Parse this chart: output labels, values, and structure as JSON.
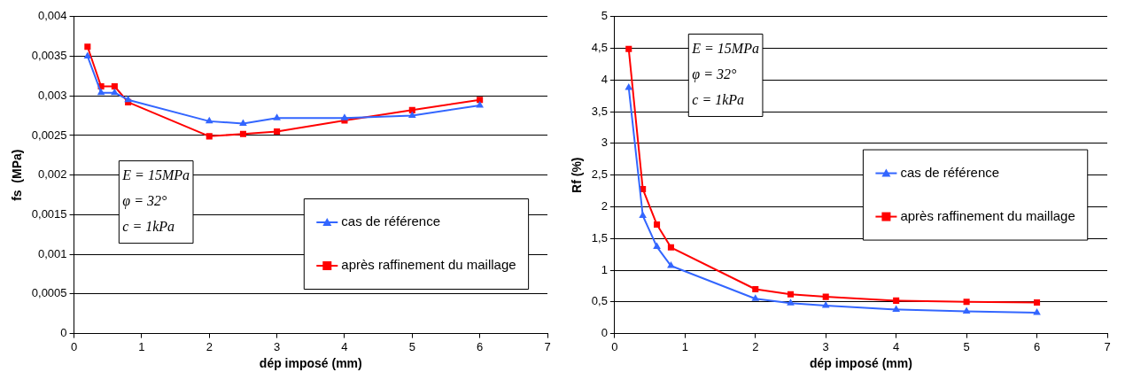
{
  "chart_data": [
    {
      "type": "line",
      "xlabel": "dép imposé (mm)",
      "ylabel": "fs  (MPa)",
      "xlim": [
        0,
        7
      ],
      "xticks": [
        0,
        1,
        2,
        3,
        4,
        5,
        6,
        7
      ],
      "ylim": [
        0,
        0.004
      ],
      "yticks": [
        0,
        {
          "value": 0.0005,
          "label": "0,0005"
        },
        {
          "value": 0.001,
          "label": "0,001"
        },
        {
          "value": 0.0015,
          "label": "0,0015"
        },
        {
          "value": 0.002,
          "label": "0,002"
        },
        {
          "value": 0.0025,
          "label": "0,0025"
        },
        {
          "value": 0.003,
          "label": "0,003"
        },
        {
          "value": 0.0035,
          "label": "0,0035"
        },
        {
          "value": 0.004,
          "label": "0,004"
        }
      ],
      "x": [
        0.2,
        0.4,
        0.6,
        0.8,
        2,
        2.5,
        3,
        4,
        5,
        6
      ],
      "series": [
        {
          "name": "cas de référence",
          "color": "#3366ff",
          "marker": "triangle",
          "values": [
            0.0035,
            0.00304,
            0.00304,
            0.00295,
            0.00268,
            0.00265,
            0.00272,
            0.00272,
            0.00275,
            0.00288
          ]
        },
        {
          "name": "après raffinement du maillage",
          "color": "#ff0000",
          "marker": "square",
          "values": [
            0.00362,
            0.00312,
            0.00312,
            0.00292,
            0.00249,
            0.00252,
            0.00255,
            0.00269,
            0.00282,
            0.00295
          ]
        }
      ],
      "annotations": [
        "E = 15MPa",
        "φ = 32°",
        "c = 1kPa"
      ],
      "grid": "y",
      "legend": "bottom right"
    },
    {
      "type": "line",
      "xlabel": "dép imposé (mm)",
      "ylabel": "Rf (%)",
      "xlim": [
        0,
        7
      ],
      "xticks": [
        0,
        1,
        2,
        3,
        4,
        5,
        6,
        7
      ],
      "ylim": [
        0,
        5
      ],
      "yticks": [
        0,
        {
          "value": 0.5,
          "label": "0,5"
        },
        1,
        {
          "value": 1.5,
          "label": "1,5"
        },
        2,
        {
          "value": 2.5,
          "label": "2,5"
        },
        3,
        {
          "value": 3.5,
          "label": "3,5"
        },
        4,
        {
          "value": 4.5,
          "label": "4,5"
        },
        5
      ],
      "x": [
        0.2,
        0.4,
        0.6,
        0.8,
        2,
        2.5,
        3,
        4,
        5,
        6
      ],
      "series": [
        {
          "name": "cas de référence",
          "color": "#3366ff",
          "marker": "triangle",
          "values": [
            3.88,
            1.86,
            1.37,
            1.07,
            0.55,
            0.48,
            0.44,
            0.38,
            0.35,
            0.33
          ]
        },
        {
          "name": "après raffinement du maillage",
          "color": "#ff0000",
          "marker": "square",
          "values": [
            4.49,
            2.28,
            1.72,
            1.36,
            0.7,
            0.62,
            0.58,
            0.52,
            0.5,
            0.49
          ]
        }
      ],
      "annotations": [
        "E = 15MPa",
        "φ = 32°",
        "c = 1kPa"
      ],
      "grid": "y",
      "legend": "right"
    }
  ]
}
